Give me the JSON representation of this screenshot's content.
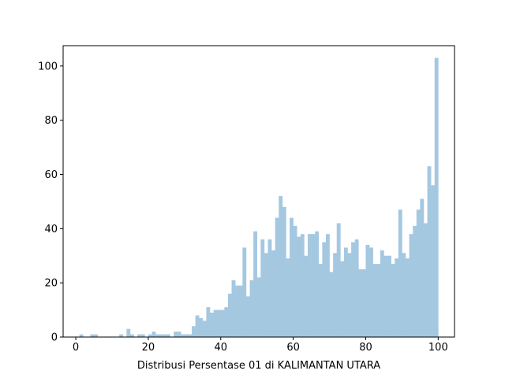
{
  "chart_data": {
    "type": "bar",
    "subtype": "histogram",
    "title": "",
    "xlabel": "Distribusi Persentase 01 di KALIMANTAN UTARA",
    "ylabel": "",
    "xlim": [
      -3.5,
      104.5
    ],
    "ylim": [
      0,
      107.5
    ],
    "xticks": [
      0,
      20,
      40,
      60,
      80,
      100
    ],
    "yticks": [
      0,
      20,
      40,
      60,
      80,
      100
    ],
    "grid": false,
    "legend": "none",
    "bar_color": "#a5c8e1",
    "bin_width": 1,
    "bin_starts": [
      0,
      1,
      2,
      3,
      4,
      5,
      6,
      7,
      8,
      9,
      10,
      11,
      12,
      13,
      14,
      15,
      16,
      17,
      18,
      19,
      20,
      21,
      22,
      23,
      24,
      25,
      26,
      27,
      28,
      29,
      30,
      31,
      32,
      33,
      34,
      35,
      36,
      37,
      38,
      39,
      40,
      41,
      42,
      43,
      44,
      45,
      46,
      47,
      48,
      49,
      50,
      51,
      52,
      53,
      54,
      55,
      56,
      57,
      58,
      59,
      60,
      61,
      62,
      63,
      64,
      65,
      66,
      67,
      68,
      69,
      70,
      71,
      72,
      73,
      74,
      75,
      76,
      77,
      78,
      79,
      80,
      81,
      82,
      83,
      84,
      85,
      86,
      87,
      88,
      89,
      90,
      91,
      92,
      93,
      94,
      95,
      96,
      97,
      98,
      99
    ],
    "counts": [
      0,
      1,
      0,
      0,
      1,
      1,
      0,
      0,
      0,
      0,
      0,
      0,
      1,
      0,
      3,
      1,
      0,
      1,
      1,
      0,
      1,
      2,
      1,
      1,
      1,
      1,
      0,
      2,
      2,
      1,
      1,
      1,
      4,
      8,
      7,
      6,
      11,
      9,
      10,
      10,
      10,
      11,
      16,
      21,
      19,
      19,
      33,
      15,
      21,
      39,
      22,
      36,
      31,
      36,
      32,
      44,
      52,
      48,
      29,
      44,
      41,
      37,
      38,
      30,
      38,
      38,
      39,
      27,
      35,
      38,
      24,
      31,
      42,
      28,
      33,
      31,
      35,
      36,
      25,
      25,
      34,
      33,
      27,
      27,
      32,
      30,
      30,
      27,
      29,
      47,
      31,
      29,
      38,
      41,
      47,
      51,
      42,
      63,
      56,
      103
    ]
  }
}
